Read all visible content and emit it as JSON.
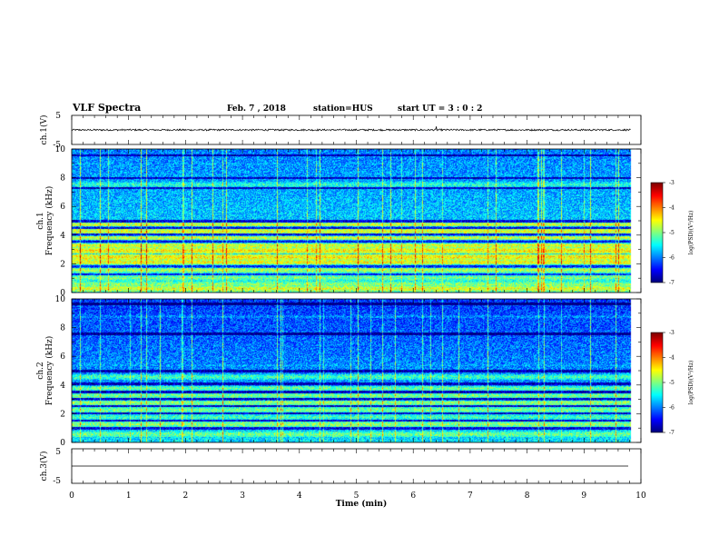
{
  "header": {
    "title": "VLF Spectra",
    "date": "Feb. 7 , 2018",
    "station": "station=HUS",
    "start": "start UT = 3 : 0 : 2"
  },
  "chart_data": [
    {
      "type": "line",
      "name": "ch1-voltage",
      "ylabel": "ch.1(V)",
      "ylim": [
        -5,
        5
      ],
      "ytick_labels": [
        "-5",
        "5"
      ],
      "xlim": [
        0,
        10
      ],
      "trace": {
        "x_range": [
          0,
          9.82
        ],
        "mean_level": 0,
        "noise_amplitude": 0.3,
        "spike": {
          "x": 6.4,
          "y": 1.2
        }
      },
      "line_color": "#000000"
    },
    {
      "type": "heatmap",
      "name": "ch1-spectrogram",
      "ylabel": "ch.1\nFrequency (kHz)",
      "ylim": [
        0,
        10
      ],
      "ytick_labels": [
        "0",
        "2",
        "4",
        "6",
        "8",
        "10"
      ],
      "xlim": [
        0,
        10
      ],
      "data_x_range": [
        0,
        9.82
      ],
      "colorbar": {
        "label": "log(PSD)(V²/Hz)",
        "range": [
          -7,
          -3
        ],
        "tick_labels": [
          "-7",
          "-6",
          "-5",
          "-4",
          "-3"
        ]
      },
      "bands_khz": [
        {
          "freq": 0.3,
          "level": -4.6
        },
        {
          "freq": 0.6,
          "level": -4.9
        },
        {
          "freq": 1.05,
          "level": -5.0
        },
        {
          "freq": 1.6,
          "level": -4.8
        },
        {
          "freq": 2.15,
          "level": -4.5
        },
        {
          "freq": 2.5,
          "level": -4.4
        },
        {
          "freq": 2.95,
          "level": -4.4
        },
        {
          "freq": 3.3,
          "level": -4.6
        },
        {
          "freq": 3.85,
          "level": -4.7
        },
        {
          "freq": 4.3,
          "level": -4.6
        },
        {
          "freq": 4.75,
          "level": -4.7
        },
        {
          "freq": 7.55,
          "level": -5.3
        },
        {
          "freq": 9.0,
          "level": -5.8
        }
      ],
      "dark_bands_khz": [
        1.3,
        1.85,
        3.6,
        4.05,
        4.55,
        5.0,
        7.3,
        8.0,
        9.6
      ],
      "background_level_low": -5.4,
      "background_level_high": -6.0,
      "spherics_min": [
        0.15,
        0.5,
        1.22,
        1.3,
        1.95,
        2.1,
        2.65,
        3.6,
        4.35,
        5.45,
        5.6,
        6.15,
        6.5,
        7.3,
        7.45,
        8.2,
        8.3,
        8.6,
        9.1,
        9.55
      ]
    },
    {
      "type": "heatmap",
      "name": "ch2-spectrogram",
      "ylabel": "ch.2\nFrequency (kHz)",
      "ylim": [
        0,
        10
      ],
      "ytick_labels": [
        "0",
        "2",
        "4",
        "6",
        "8",
        "10"
      ],
      "xlim": [
        0,
        10
      ],
      "data_x_range": [
        0,
        9.82
      ],
      "colorbar": {
        "label": "log(PSD)(V²/Hz)",
        "range": [
          -7,
          -3
        ],
        "tick_labels": [
          "-7",
          "-6",
          "-5",
          "-4",
          "-3"
        ]
      },
      "bands_khz": [
        {
          "freq": 0.6,
          "level": -5.0
        },
        {
          "freq": 1.3,
          "level": -4.9
        },
        {
          "freq": 1.8,
          "level": -5.2
        },
        {
          "freq": 2.3,
          "level": -5.0
        },
        {
          "freq": 2.8,
          "level": -4.9
        },
        {
          "freq": 3.3,
          "level": -5.0
        },
        {
          "freq": 3.8,
          "level": -5.1
        },
        {
          "freq": 4.6,
          "level": -5.2
        },
        {
          "freq": 5.4,
          "level": -5.8
        },
        {
          "freq": 8.8,
          "level": -5.9
        }
      ],
      "dark_bands_khz": [
        1.0,
        1.55,
        2.05,
        2.55,
        3.05,
        3.55,
        4.1,
        5.0,
        7.6,
        9.7
      ],
      "background_level_low": -5.6,
      "background_level_high": -6.3,
      "spherics_min": [
        0.15,
        0.5,
        1.22,
        1.3,
        1.55,
        1.95,
        2.1,
        2.65,
        3.6,
        4.35,
        4.9,
        5.45,
        6.15,
        6.3,
        6.5,
        6.8,
        7.3,
        8.2,
        8.3,
        8.6,
        9.1,
        9.55
      ]
    },
    {
      "type": "line",
      "name": "ch3-voltage",
      "ylabel": "ch.3(V)",
      "ylim": [
        -5,
        5
      ],
      "ytick_labels": [
        "-5",
        "5"
      ],
      "xlim": [
        0,
        10
      ],
      "trace": {
        "x_range": [
          0,
          10
        ],
        "mean_level": 0,
        "noise_amplitude": 0
      },
      "line_color": "#000000"
    }
  ],
  "x_axis": {
    "label": "Time (min)",
    "range": [
      0,
      10
    ],
    "tick_labels": [
      "0",
      "1",
      "2",
      "3",
      "4",
      "5",
      "6",
      "7",
      "8",
      "9",
      "10"
    ]
  }
}
